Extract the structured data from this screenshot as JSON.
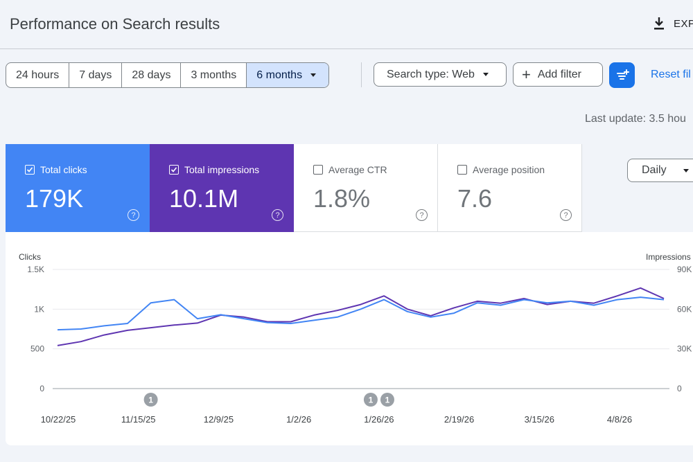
{
  "header": {
    "title": "Performance on Search results",
    "export_label": "EXP"
  },
  "date_range": {
    "options": [
      "24 hours",
      "7 days",
      "28 days",
      "3 months",
      "6 months"
    ],
    "selected_index": 4
  },
  "filters": {
    "search_type": "Search type: Web",
    "add_filter": "Add filter",
    "reset": "Reset fil"
  },
  "last_update": "Last update: 3.5 hou",
  "metrics": [
    {
      "label": "Total clicks",
      "value": "179K",
      "checked": true,
      "color": "#4285f4"
    },
    {
      "label": "Total impressions",
      "value": "10.1M",
      "checked": true,
      "color": "#5e35b1"
    },
    {
      "label": "Average CTR",
      "value": "1.8%",
      "checked": false
    },
    {
      "label": "Average position",
      "value": "7.6",
      "checked": false
    }
  ],
  "granularity": "Daily",
  "chart_data": {
    "type": "line",
    "left_axis": {
      "label": "Clicks",
      "ticks": [
        "0",
        "500",
        "1K",
        "1.5K"
      ],
      "range": [
        0,
        1500
      ]
    },
    "right_axis": {
      "label": "Impressions",
      "ticks": [
        "0",
        "30K",
        "60K",
        "90K"
      ],
      "range": [
        0,
        90000
      ]
    },
    "x_ticks": [
      "10/22/25",
      "11/15/25",
      "12/9/25",
      "1/2/26",
      "1/26/26",
      "2/19/26",
      "3/15/26",
      "4/8/26"
    ],
    "grid": true,
    "annotations": [
      {
        "date": "11/19/25",
        "label": "1"
      },
      {
        "date": "1/24/26",
        "label": "1"
      },
      {
        "date": "1/29/26",
        "label": "1"
      }
    ],
    "x": [
      "10/22/25",
      "10/29/25",
      "11/5/25",
      "11/12/25",
      "11/19/25",
      "11/26/25",
      "12/3/25",
      "12/10/25",
      "12/17/25",
      "12/24/25",
      "12/31/25",
      "1/7/26",
      "1/14/26",
      "1/21/26",
      "1/28/26",
      "2/4/26",
      "2/11/26",
      "2/18/26",
      "2/25/26",
      "3/4/26",
      "3/11/26",
      "3/18/26",
      "3/25/26",
      "4/1/26",
      "4/8/26",
      "4/15/26",
      "4/22/26"
    ],
    "series": [
      {
        "name": "Clicks",
        "axis": "left",
        "color": "#4285f4",
        "values": [
          740,
          750,
          790,
          820,
          1080,
          1120,
          880,
          930,
          880,
          830,
          820,
          860,
          900,
          1000,
          1120,
          970,
          900,
          950,
          1080,
          1050,
          1120,
          1080,
          1100,
          1050,
          1120,
          1150,
          1120
        ]
      },
      {
        "name": "Impressions",
        "axis": "right",
        "color": "#5e35b1",
        "values": [
          32500,
          35500,
          40500,
          44000,
          46000,
          48000,
          49500,
          55500,
          54000,
          50500,
          50500,
          55500,
          59000,
          63500,
          70000,
          60000,
          55000,
          61000,
          66000,
          64500,
          68000,
          63500,
          66000,
          64500,
          70000,
          76000,
          68000
        ]
      }
    ]
  }
}
